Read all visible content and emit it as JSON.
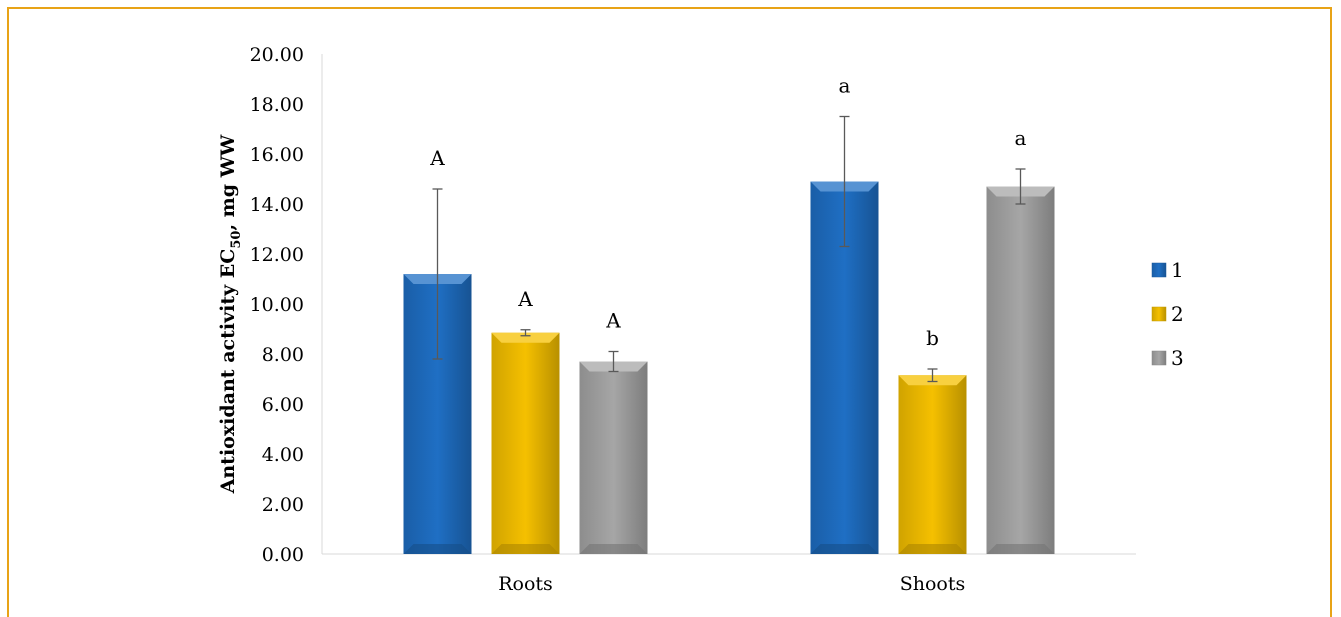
{
  "chart_data": {
    "type": "bar",
    "title": "",
    "xlabel": "",
    "ylabel": {
      "main": "Antioxidant activity EC",
      "sub": "50",
      "suffix": ", mg WW"
    },
    "ylim": [
      0,
      20
    ],
    "yticks": [
      "0.00",
      "2.00",
      "4.00",
      "6.00",
      "8.00",
      "10.00",
      "12.00",
      "14.00",
      "16.00",
      "18.00",
      "20.00"
    ],
    "categories": [
      "Roots",
      "Shoots"
    ],
    "legend_position": "right",
    "grid": false,
    "series": [
      {
        "name": "1",
        "color": "#1f6fc4",
        "values": [
          11.2,
          14.9
        ],
        "errors": [
          3.4,
          2.6
        ],
        "letters": [
          "A",
          "a"
        ]
      },
      {
        "name": "2",
        "color": "#f5c000",
        "values": [
          8.85,
          7.15
        ],
        "errors": [
          0.12,
          0.25
        ],
        "letters": [
          "A",
          "b"
        ]
      },
      {
        "name": "3",
        "color": "#a6a6a6",
        "values": [
          7.7,
          14.7
        ],
        "errors": [
          0.4,
          0.7
        ],
        "letters": [
          "A",
          "a"
        ]
      }
    ]
  }
}
